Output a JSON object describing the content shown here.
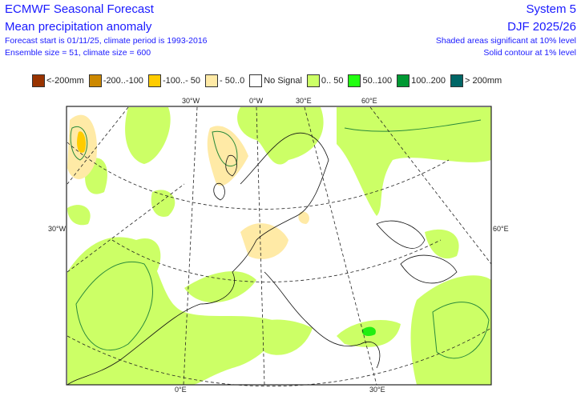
{
  "header": {
    "title": "ECMWF Seasonal Forecast",
    "subtitle": "Mean precipitation anomaly",
    "info1": "Forecast start is 01/11/25, climate period is 1993-2016",
    "info2": "Ensemble size = 51, climate size = 600",
    "system": "System 5",
    "season": "DJF 2025/26",
    "note1": "Shaded areas significant at 10% level",
    "note2": "Solid contour at 1% level"
  },
  "legend": [
    {
      "label": "<-200mm",
      "color": "#993300"
    },
    {
      "label": "-200..-100",
      "color": "#cc8800"
    },
    {
      "label": "-100..- 50",
      "color": "#ffcc00"
    },
    {
      "label": "- 50..0",
      "color": "#ffeaa6"
    },
    {
      "label": "No Signal",
      "color": "#ffffff"
    },
    {
      "label": "0.. 50",
      "color": "#ccff66"
    },
    {
      "label": "50..100",
      "color": "#22ff11"
    },
    {
      "label": "100..200",
      "color": "#009933"
    },
    {
      "label": "> 200mm",
      "color": "#006666"
    }
  ],
  "axis_labels": {
    "top": [
      "30°W",
      "0°W",
      "30°E",
      "60°E"
    ],
    "left": "30°W",
    "right": "60°E",
    "bottom": [
      "0°E",
      "30°E"
    ]
  }
}
